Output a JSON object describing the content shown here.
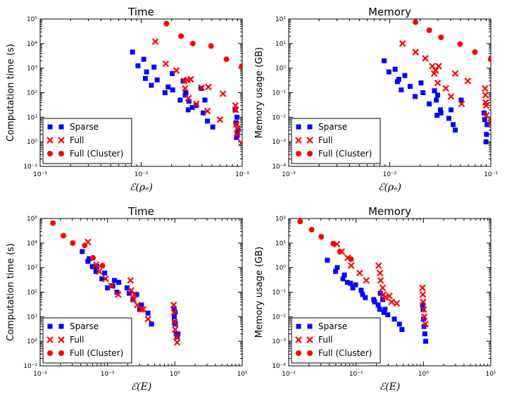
{
  "chart_data": [
    {
      "type": "scatter",
      "title": "Time",
      "xlabel": "ℰ(ρₑ)",
      "ylabel": "Computation time (s)",
      "xscale": "log",
      "yscale": "log",
      "xlim": [
        0.001,
        0.1
      ],
      "ylim": [
        0.1,
        100000
      ],
      "xticks": [
        "10⁻³",
        "10⁻²",
        "10⁻¹"
      ],
      "yticks": [
        "10⁻¹",
        "10⁰",
        "10¹",
        "10²",
        "10³",
        "10⁴",
        "10⁵"
      ],
      "legend": "lower-left",
      "series": [
        {
          "name": "Sparse",
          "marker": "square",
          "color": "#0000ff",
          "x": [
            0.0082,
            0.0093,
            0.0106,
            0.011,
            0.0113,
            0.0126,
            0.0134,
            0.0144,
            0.0172,
            0.0185,
            0.0203,
            0.0205,
            0.0243,
            0.026,
            0.0273,
            0.0277,
            0.0292,
            0.0297,
            0.032,
            0.0349,
            0.039,
            0.0411,
            0.0427,
            0.0453,
            0.0511,
            0.0851,
            0.0868,
            0.0887,
            0.0878,
            0.0896,
            0.091
          ],
          "y": [
            4500,
            1250,
            2300,
            380,
            700,
            200,
            1100,
            330,
            100,
            170,
            600,
            130,
            50,
            300,
            80,
            100,
            20,
            45,
            25,
            30,
            150,
            15,
            50,
            7,
            4,
            20,
            6,
            10,
            1.5,
            2,
            3
          ]
        },
        {
          "name": "Full",
          "marker": "x",
          "color": "#ff0000",
          "x": [
            0.0138,
            0.0175,
            0.0223,
            0.0267,
            0.0272,
            0.0287,
            0.0294,
            0.0309,
            0.0351,
            0.0396,
            0.0453,
            0.0463,
            0.0602,
            0.0645,
            0.0855,
            0.0863,
            0.0874,
            0.0892,
            0.0898,
            0.0985
          ],
          "y": [
            12000,
            1500,
            800,
            300,
            150,
            330,
            60,
            350,
            35,
            160,
            18,
            170,
            8,
            90,
            30,
            20,
            5,
            2,
            3.5,
            0.9
          ]
        },
        {
          "name": "Full (Cluster)",
          "marker": "circle",
          "color": "#ff0000",
          "x": [
            0.0178,
            0.0248,
            0.0324,
            0.0491,
            0.0697,
            0.0988
          ],
          "y": [
            65000,
            20000,
            10000,
            8000,
            2300,
            1200
          ]
        }
      ]
    },
    {
      "type": "scatter",
      "title": "Memory",
      "xlabel": "ℰ(ρₑ)",
      "ylabel": "Memory usage (GB)",
      "xscale": "log",
      "yscale": "log",
      "xlim": [
        0.001,
        0.1
      ],
      "ylim": [
        0.0001,
        100
      ],
      "xticks": [
        "10⁻³",
        "10⁻²",
        "10⁻¹"
      ],
      "yticks": [
        "10⁻⁴",
        "10⁻³",
        "10⁻²",
        "10⁻¹",
        "10⁰",
        "10¹",
        "10²"
      ],
      "legend": "lower-left",
      "series": [
        {
          "name": "Sparse",
          "marker": "square",
          "color": "#0000ff",
          "x": [
            0.0088,
            0.0098,
            0.0113,
            0.0119,
            0.0123,
            0.013,
            0.0141,
            0.0159,
            0.0178,
            0.0204,
            0.0213,
            0.0246,
            0.0277,
            0.0289,
            0.0294,
            0.0298,
            0.0317,
            0.0321,
            0.0385,
            0.0404,
            0.0424,
            0.0445,
            0.0509,
            0.0859,
            0.0869,
            0.0896,
            0.0906,
            0.092
          ],
          "y": [
            2,
            0.7,
            0.9,
            0.28,
            0.35,
            0.13,
            0.5,
            0.18,
            0.07,
            0.25,
            0.1,
            0.035,
            0.12,
            0.05,
            0.012,
            0.08,
            0.02,
            0.015,
            0.009,
            0.02,
            0.005,
            0.003,
            0.05,
            0.015,
            0.008,
            0.001,
            0.002,
            0.005
          ]
        },
        {
          "name": "Full",
          "marker": "x",
          "color": "#ff0000",
          "x": [
            0.0134,
            0.018,
            0.0225,
            0.0264,
            0.0275,
            0.0285,
            0.0298,
            0.0305,
            0.0359,
            0.0404,
            0.0445,
            0.0514,
            0.0591,
            0.0877,
            0.0886,
            0.0889,
            0.0901,
            0.0904,
            0.0998
          ],
          "y": [
            10,
            4.5,
            2.5,
            1.2,
            0.6,
            0.8,
            0.25,
            1.2,
            0.15,
            0.07,
            0.6,
            0.035,
            0.3,
            0.15,
            0.08,
            0.04,
            0.03,
            0.012,
            0.006
          ]
        },
        {
          "name": "Full (Cluster)",
          "marker": "circle",
          "color": "#ff0000",
          "x": [
            0.018,
            0.0246,
            0.0322,
            0.0497,
            0.0696,
            0.0997
          ],
          "y": [
            75,
            35,
            18,
            9.5,
            4.5,
            2.3
          ]
        }
      ]
    },
    {
      "type": "scatter",
      "title": "Time",
      "xlabel": "ℰ(E)",
      "ylabel": "Computation time (s)",
      "xscale": "log",
      "yscale": "log",
      "xlim": [
        0.01,
        10
      ],
      "ylim": [
        0.1,
        100000
      ],
      "xticks": [
        "10⁻²",
        "10⁻¹",
        "10⁰",
        "10¹"
      ],
      "yticks": [
        "10⁻¹",
        "10⁰",
        "10¹",
        "10²",
        "10³",
        "10⁴",
        "10⁵"
      ],
      "legend": "lower-left",
      "series": [
        {
          "name": "Sparse",
          "marker": "square",
          "color": "#0000ff",
          "x": [
            0.0422,
            0.0512,
            0.0535,
            0.0597,
            0.0674,
            0.0697,
            0.0826,
            0.0909,
            0.1,
            0.12,
            0.127,
            0.138,
            0.147,
            0.195,
            0.21,
            0.239,
            0.271,
            0.3,
            0.32,
            0.4,
            0.45,
            0.975,
            0.98,
            0.99,
            1.01,
            1.02,
            1.05,
            1.08,
            1.11
          ],
          "y": [
            4500,
            1800,
            2300,
            1100,
            700,
            1100,
            350,
            600,
            150,
            180,
            300,
            100,
            250,
            150,
            90,
            50,
            80,
            20,
            30,
            14,
            5,
            20,
            10,
            6,
            15,
            5,
            2,
            1.5,
            2
          ]
        },
        {
          "name": "Full",
          "marker": "x",
          "color": "#ff0000",
          "x": [
            0.0513,
            0.0678,
            0.0755,
            0.0938,
            0.114,
            0.144,
            0.22,
            0.225,
            0.242,
            0.25,
            0.278,
            0.313,
            0.339,
            0.4,
            0.961,
            0.976,
            0.988,
            1.01,
            1.06,
            1.08
          ],
          "y": [
            11000,
            1300,
            700,
            350,
            180,
            80,
            300,
            120,
            50,
            80,
            30,
            20,
            20,
            8,
            30,
            15,
            6,
            3,
            1.5,
            0.9
          ]
        },
        {
          "name": "Full (Cluster)",
          "marker": "circle",
          "color": "#ff0000",
          "x": [
            0.0155,
            0.0221,
            0.0305,
            0.0459,
            0.0609,
            0.0843
          ],
          "y": [
            65000,
            20000,
            10000,
            8000,
            2500,
            1200
          ]
        }
      ]
    },
    {
      "type": "scatter",
      "title": "Memory",
      "xlabel": "ℰ(E)",
      "ylabel": "Memory usage (GB)",
      "xscale": "log",
      "yscale": "log",
      "xlim": [
        0.01,
        10
      ],
      "ylim": [
        0.0001,
        100
      ],
      "xticks": [
        "10⁻²",
        "10⁻¹",
        "10⁰",
        "10¹"
      ],
      "yticks": [
        "10⁻⁴",
        "10⁻³",
        "10⁻²",
        "10⁻¹",
        "10⁰",
        "10¹",
        "10²"
      ],
      "legend": "lower-left",
      "series": [
        {
          "name": "Sparse",
          "marker": "square",
          "color": "#0000ff",
          "x": [
            0.0375,
            0.0497,
            0.0524,
            0.0638,
            0.0671,
            0.0743,
            0.0822,
            0.0895,
            0.0982,
            0.119,
            0.125,
            0.137,
            0.183,
            0.189,
            0.213,
            0.224,
            0.229,
            0.249,
            0.259,
            0.269,
            0.295,
            0.37,
            0.44,
            0.48,
            0.97,
            0.99,
            1.0,
            1.02,
            1.05,
            1.08
          ],
          "y": [
            2,
            0.7,
            1.0,
            0.35,
            0.5,
            0.25,
            0.23,
            0.15,
            0.2,
            0.12,
            0.08,
            0.06,
            0.05,
            0.04,
            0.03,
            0.02,
            0.09,
            0.05,
            0.015,
            0.02,
            0.012,
            0.008,
            0.005,
            0.003,
            0.03,
            0.02,
            0.008,
            0.004,
            0.002,
            0.001
          ]
        },
        {
          "name": "Full",
          "marker": "x",
          "color": "#ff0000",
          "x": [
            0.0519,
            0.0612,
            0.0751,
            0.0847,
            0.113,
            0.142,
            0.216,
            0.227,
            0.231,
            0.248,
            0.254,
            0.272,
            0.312,
            0.336,
            0.4,
            0.965,
            0.98,
            0.99,
            1.01,
            1.03,
            1.07
          ],
          "y": [
            9,
            4.5,
            2.5,
            1.2,
            0.6,
            0.3,
            1.2,
            0.6,
            0.3,
            0.15,
            0.08,
            0.06,
            0.07,
            0.04,
            0.035,
            0.15,
            0.08,
            0.04,
            0.02,
            0.01,
            0.005
          ]
        },
        {
          "name": "Full (Cluster)",
          "marker": "circle",
          "color": "#ff0000",
          "x": [
            0.0148,
            0.0219,
            0.0304,
            0.046,
            0.0576,
            0.0842
          ],
          "y": [
            75,
            35,
            18,
            9.5,
            4.5,
            2.2
          ]
        }
      ]
    }
  ]
}
